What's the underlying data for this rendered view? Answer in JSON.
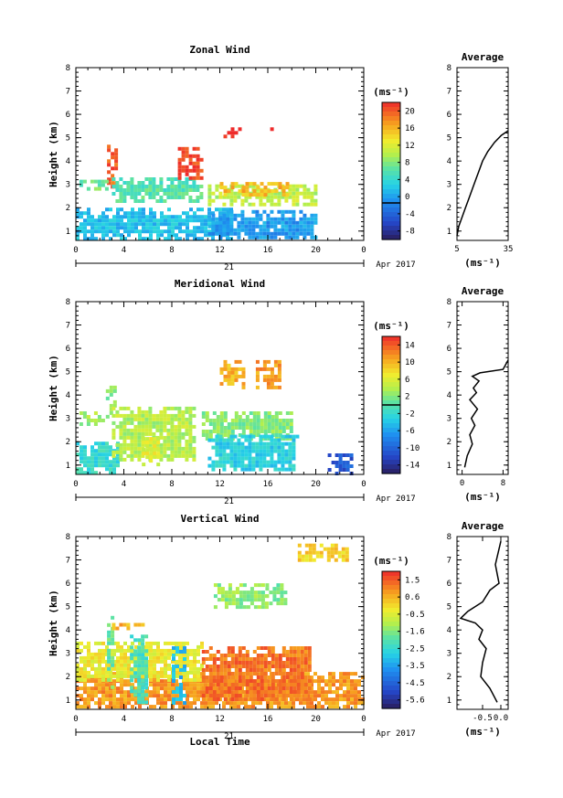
{
  "chart_data": [
    {
      "type": "heatmap",
      "title": "Zonal Wind",
      "ylabel": "Height (km)",
      "xlim": [
        0,
        24
      ],
      "ylim": [
        0.6,
        8
      ],
      "xticks": [
        "0",
        "4",
        "8",
        "12",
        "16",
        "20",
        "0"
      ],
      "yticks": [
        "1",
        "2",
        "3",
        "4",
        "5",
        "6",
        "7",
        "8"
      ],
      "date_day": "21",
      "date_month": "Apr 2017",
      "colorbar": {
        "unit": "(ms⁻¹)",
        "min": -8,
        "max": 22,
        "zero_line": 0,
        "ticks": [
          "20",
          "16",
          "12",
          "8",
          "4",
          "0",
          "-4",
          "-8"
        ]
      },
      "patches": [
        {
          "x0": 2.6,
          "x1": 3.4,
          "y0": 2.9,
          "y1": 4.7,
          "value": 20
        },
        {
          "x0": 0.3,
          "x1": 2.5,
          "y0": 2.8,
          "y1": 3.2,
          "value": 8
        },
        {
          "x0": 3.0,
          "x1": 10.5,
          "y0": 2.3,
          "y1": 3.3,
          "value": 7
        },
        {
          "x0": 0.0,
          "x1": 13.0,
          "y0": 0.7,
          "y1": 2.0,
          "value": 3
        },
        {
          "x0": 11.0,
          "x1": 20.0,
          "y0": 2.2,
          "y1": 3.0,
          "value": 11
        },
        {
          "x0": 12.0,
          "x1": 17.5,
          "y0": 2.6,
          "y1": 3.1,
          "value": 16
        },
        {
          "x0": 11.0,
          "x1": 20.0,
          "y0": 0.7,
          "y1": 1.9,
          "value": 1
        },
        {
          "x0": 8.5,
          "x1": 10.5,
          "y0": 3.3,
          "y1": 4.6,
          "value": 21
        },
        {
          "x0": 12.0,
          "x1": 13.8,
          "y0": 5.0,
          "y1": 5.6,
          "value": 22
        },
        {
          "x0": 16.2,
          "x1": 16.8,
          "y0": 5.1,
          "y1": 5.6,
          "value": 21
        },
        {
          "x0": 17.6,
          "x1": 17.9,
          "y0": 5.2,
          "y1": 5.6,
          "value": 21
        }
      ],
      "profile": {
        "title": "Average",
        "xlabel": "(ms⁻¹)",
        "xlim": [
          5,
          35
        ],
        "xticks": [
          "5",
          "35"
        ],
        "x": [
          5,
          6,
          8,
          10,
          12,
          14,
          16,
          18,
          20,
          23,
          27,
          31,
          35
        ],
        "y": [
          0.8,
          1.2,
          1.6,
          2.0,
          2.4,
          2.8,
          3.2,
          3.6,
          4.0,
          4.4,
          4.8,
          5.1,
          5.3
        ]
      }
    },
    {
      "type": "heatmap",
      "title": "Meridional Wind",
      "ylabel": "Height (km)",
      "xlim": [
        0,
        24
      ],
      "ylim": [
        0.6,
        8
      ],
      "xticks": [
        "0",
        "4",
        "8",
        "12",
        "16",
        "20",
        "0"
      ],
      "yticks": [
        "1",
        "2",
        "3",
        "4",
        "5",
        "6",
        "7",
        "8"
      ],
      "date_day": "21",
      "date_month": "Apr 2017",
      "colorbar": {
        "unit": "(ms⁻¹)",
        "min": -16,
        "max": 16,
        "zero_line": 0,
        "ticks": [
          "14",
          "10",
          "6",
          "2",
          "-2",
          "-6",
          "-10",
          "-14"
        ]
      },
      "patches": [
        {
          "x0": 0.0,
          "x1": 3.5,
          "y0": 0.7,
          "y1": 2.0,
          "value": -2
        },
        {
          "x0": 2.5,
          "x1": 3.2,
          "y0": 3.0,
          "y1": 4.4,
          "value": 2
        },
        {
          "x0": 0.3,
          "x1": 2.5,
          "y0": 2.7,
          "y1": 3.3,
          "value": 3
        },
        {
          "x0": 3.0,
          "x1": 10.0,
          "y0": 1.2,
          "y1": 3.5,
          "value": 4
        },
        {
          "x0": 5.5,
          "x1": 7.0,
          "y0": 1.0,
          "y1": 2.2,
          "value": 6
        },
        {
          "x0": 10.5,
          "x1": 18.0,
          "y0": 2.2,
          "y1": 3.3,
          "value": 2
        },
        {
          "x0": 11.0,
          "x1": 18.5,
          "y0": 0.8,
          "y1": 2.3,
          "value": -3
        },
        {
          "x0": 12.0,
          "x1": 14.0,
          "y0": 4.4,
          "y1": 5.5,
          "value": 10
        },
        {
          "x0": 15.0,
          "x1": 17.0,
          "y0": 4.4,
          "y1": 5.5,
          "value": 11
        },
        {
          "x0": 21.0,
          "x1": 23.0,
          "y0": 0.7,
          "y1": 1.5,
          "value": -11
        }
      ],
      "profile": {
        "title": "Average",
        "xlabel": "(ms⁻¹)",
        "xlim": [
          -1,
          9
        ],
        "xticks": [
          "0",
          "8"
        ],
        "x": [
          0.5,
          1,
          2,
          1.5,
          2.5,
          1.8,
          3,
          1.5,
          2.8,
          2.2,
          3.3,
          2,
          3.5,
          8,
          9
        ],
        "y": [
          0.9,
          1.4,
          1.9,
          2.3,
          2.7,
          3.0,
          3.4,
          3.8,
          4.1,
          4.3,
          4.6,
          4.8,
          4.95,
          5.1,
          5.5
        ]
      }
    },
    {
      "type": "heatmap",
      "title": "Vertical Wind",
      "xlabel": "Local Time",
      "ylabel": "Height (km)",
      "xlim": [
        0,
        24
      ],
      "ylim": [
        0.6,
        8
      ],
      "xticks": [
        "0",
        "4",
        "8",
        "12",
        "16",
        "20",
        "0"
      ],
      "yticks": [
        "1",
        "2",
        "3",
        "4",
        "5",
        "6",
        "7",
        "8"
      ],
      "date_day": "21",
      "date_month": "Apr 2017",
      "colorbar": {
        "unit": "(ms⁻¹)",
        "min": -6,
        "max": 2,
        "zero_line": null,
        "ticks": [
          "1.5",
          "0.6",
          "-0.5",
          "-1.6",
          "-2.5",
          "-3.5",
          "-4.5",
          "-5.6"
        ]
      },
      "patches": [
        {
          "x0": 0.0,
          "x1": 24.0,
          "y0": 0.7,
          "y1": 2.2,
          "value": 0.8
        },
        {
          "x0": 0.0,
          "x1": 10.5,
          "y0": 1.8,
          "y1": 3.5,
          "value": -0.3
        },
        {
          "x0": 4.5,
          "x1": 6.0,
          "y0": 0.9,
          "y1": 3.8,
          "value": -2.2
        },
        {
          "x0": 8.0,
          "x1": 9.0,
          "y0": 0.9,
          "y1": 3.3,
          "value": -3.2
        },
        {
          "x0": 2.6,
          "x1": 3.1,
          "y0": 1.5,
          "y1": 4.6,
          "value": -1.8
        },
        {
          "x0": 10.5,
          "x1": 19.5,
          "y0": 1.0,
          "y1": 3.3,
          "value": 1.2
        },
        {
          "x0": 11.5,
          "x1": 16.0,
          "y0": 5.0,
          "y1": 6.0,
          "value": -1.4
        },
        {
          "x0": 15.8,
          "x1": 17.5,
          "y0": 5.1,
          "y1": 6.0,
          "value": -1.6
        },
        {
          "x0": 18.5,
          "x1": 22.5,
          "y0": 7.0,
          "y1": 7.7,
          "value": 0.1
        },
        {
          "x0": 3.0,
          "x1": 5.5,
          "y0": 4.0,
          "y1": 4.3,
          "value": 0.5
        }
      ],
      "profile": {
        "title": "Average",
        "xlabel": "(ms⁻¹)",
        "xlim": [
          -1.2,
          0.2
        ],
        "xticks": [
          "-0.5",
          "0.0"
        ],
        "x": [
          -0.1,
          -0.3,
          -0.55,
          -0.5,
          -0.4,
          -0.6,
          -0.5,
          -0.7,
          -1.1,
          -0.9,
          -0.5,
          -0.3,
          -0.05,
          -0.15,
          0.0
        ],
        "y": [
          0.9,
          1.5,
          2.0,
          2.6,
          3.2,
          3.6,
          4.0,
          4.3,
          4.5,
          4.8,
          5.2,
          5.7,
          6.0,
          6.8,
          7.8
        ]
      }
    }
  ]
}
